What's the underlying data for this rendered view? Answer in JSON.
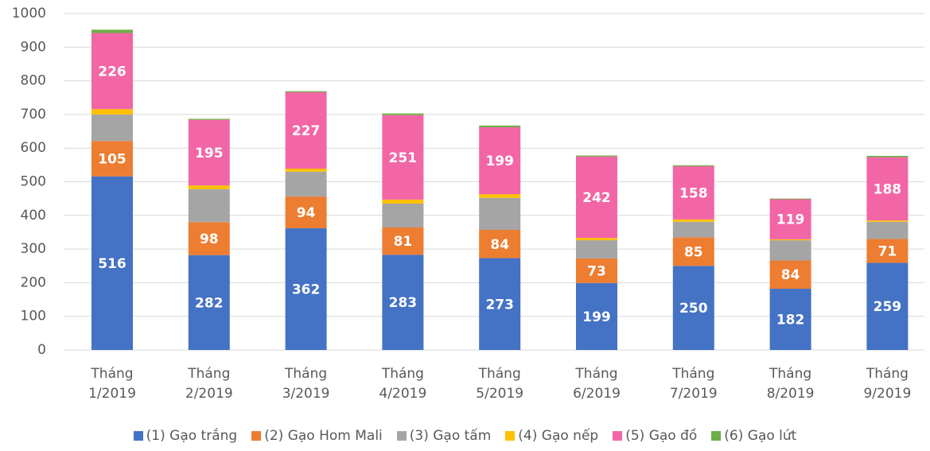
{
  "chart_data": {
    "type": "stacked_bar",
    "categories": [
      "Tháng 1/2019",
      "Tháng 2/2019",
      "Tháng 3/2019",
      "Tháng 4/2019",
      "Tháng 5/2019",
      "Tháng 6/2019",
      "Tháng 7/2019",
      "Tháng 8/2019",
      "Tháng 9/2019"
    ],
    "series": [
      {
        "name": "(1) Gạo trắng",
        "color": "#4472c4",
        "data_labels": true,
        "values": [
          516,
          282,
          362,
          283,
          273,
          199,
          250,
          182,
          259
        ]
      },
      {
        "name": "(2) Gạo Hom Mali",
        "color": "#ed7d31",
        "data_labels": true,
        "values": [
          105,
          98,
          94,
          81,
          84,
          73,
          85,
          84,
          71
        ]
      },
      {
        "name": "(3) Gạo tấm",
        "color": "#a5a5a5",
        "values": [
          79,
          98,
          74,
          71,
          95,
          54,
          46,
          60,
          51
        ]
      },
      {
        "name": "(4) Gạo nếp",
        "color": "#ffc000",
        "values": [
          16,
          11,
          9,
          12,
          11,
          7,
          7,
          3,
          4
        ]
      },
      {
        "name": "(5) Gạo đồ",
        "color": "#f266a6",
        "data_labels": true,
        "values": [
          226,
          195,
          227,
          251,
          199,
          242,
          158,
          119,
          188
        ]
      },
      {
        "name": "(6) Gạo lứt",
        "color": "#70ad47",
        "values": [
          10,
          3,
          3,
          5,
          5,
          3,
          3,
          2,
          4
        ]
      }
    ],
    "ylim": [
      0,
      1000
    ],
    "yticks": [
      0,
      100,
      200,
      300,
      400,
      500,
      600,
      700,
      800,
      900,
      1000
    ],
    "grid": true,
    "legend": "bottom"
  }
}
